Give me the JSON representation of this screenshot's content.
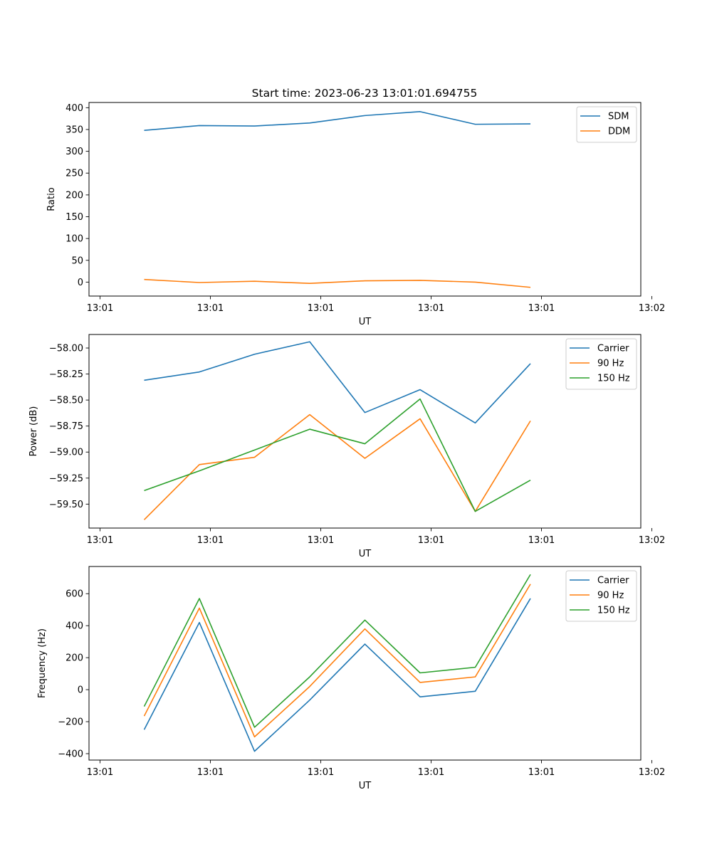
{
  "figure_title": "Start time: 2023-06-23 13:01:01.694755",
  "colors": {
    "blue": "#1f77b4",
    "orange": "#ff7f0e",
    "green": "#2ca02c"
  },
  "chart_data": [
    {
      "type": "line",
      "title": "Start time: 2023-06-23 13:01:01.694755",
      "xlabel": "UT",
      "ylabel": "Ratio",
      "x": [
        1,
        2,
        3,
        4,
        5,
        6,
        7,
        8
      ],
      "xlim": [
        0,
        10
      ],
      "xticks": [
        0.2,
        2.2,
        4.2,
        6.2,
        8.2,
        10.2
      ],
      "xtick_labels": [
        "13:01",
        "13:01",
        "13:01",
        "13:01",
        "13:01",
        "13:02"
      ],
      "ylim": [
        -32,
        412
      ],
      "yticks": [
        0,
        50,
        100,
        150,
        200,
        250,
        300,
        350,
        400
      ],
      "ytick_labels": [
        "0",
        "50",
        "100",
        "150",
        "200",
        "250",
        "300",
        "350",
        "400"
      ],
      "legend_position": "top-right",
      "series": [
        {
          "name": "SDM",
          "color": "#1f77b4",
          "values": [
            348,
            359,
            358,
            365,
            382,
            391,
            362,
            363
          ]
        },
        {
          "name": "DDM",
          "color": "#ff7f0e",
          "values": [
            6,
            -1,
            2,
            -3,
            3,
            4,
            0,
            -12
          ]
        }
      ]
    },
    {
      "type": "line",
      "xlabel": "UT",
      "ylabel": "Power (dB)",
      "x": [
        1,
        2,
        3,
        4,
        5,
        6,
        7,
        8
      ],
      "xlim": [
        0,
        10
      ],
      "xticks": [
        0.2,
        2.2,
        4.2,
        6.2,
        8.2,
        10.2
      ],
      "xtick_labels": [
        "13:01",
        "13:01",
        "13:01",
        "13:01",
        "13:01",
        "13:02"
      ],
      "ylim": [
        -59.73,
        -57.87
      ],
      "yticks": [
        -58.0,
        -58.25,
        -58.5,
        -58.75,
        -59.0,
        -59.25,
        -59.5
      ],
      "ytick_labels": [
        "−58.00",
        "−58.25",
        "−58.50",
        "−58.75",
        "−59.00",
        "−59.25",
        "−59.50"
      ],
      "legend_position": "top-right",
      "series": [
        {
          "name": "Carrier",
          "color": "#1f77b4",
          "values": [
            -58.31,
            -58.23,
            -58.06,
            -57.94,
            -58.62,
            -58.4,
            -58.72,
            -58.15
          ]
        },
        {
          "name": "90 Hz",
          "color": "#ff7f0e",
          "values": [
            -59.65,
            -59.12,
            -59.05,
            -58.64,
            -59.06,
            -58.68,
            -59.57,
            -58.7
          ]
        },
        {
          "name": "150 Hz",
          "color": "#2ca02c",
          "values": [
            -59.37,
            -59.18,
            -58.98,
            -58.78,
            -58.92,
            -58.49,
            -59.57,
            -59.27
          ]
        }
      ]
    },
    {
      "type": "line",
      "xlabel": "UT",
      "ylabel": "Frequency (Hz)",
      "x": [
        1,
        2,
        3,
        4,
        5,
        6,
        7,
        8
      ],
      "xlim": [
        0,
        10
      ],
      "xticks": [
        0.2,
        2.2,
        4.2,
        6.2,
        8.2,
        10.2
      ],
      "xtick_labels": [
        "13:01",
        "13:01",
        "13:01",
        "13:01",
        "13:01",
        "13:02"
      ],
      "ylim": [
        -440,
        770
      ],
      "yticks": [
        -400,
        -200,
        0,
        200,
        400,
        600
      ],
      "ytick_labels": [
        "−400",
        "−200",
        "0",
        "200",
        "400",
        "600"
      ],
      "legend_position": "top-right",
      "series": [
        {
          "name": "Carrier",
          "color": "#1f77b4",
          "values": [
            -250,
            420,
            -385,
            -65,
            285,
            -45,
            -10,
            570
          ]
        },
        {
          "name": "90 Hz",
          "color": "#ff7f0e",
          "values": [
            -165,
            510,
            -295,
            20,
            380,
            45,
            80,
            660
          ]
        },
        {
          "name": "150 Hz",
          "color": "#2ca02c",
          "values": [
            -105,
            570,
            -235,
            80,
            435,
            105,
            140,
            720
          ]
        }
      ]
    }
  ]
}
